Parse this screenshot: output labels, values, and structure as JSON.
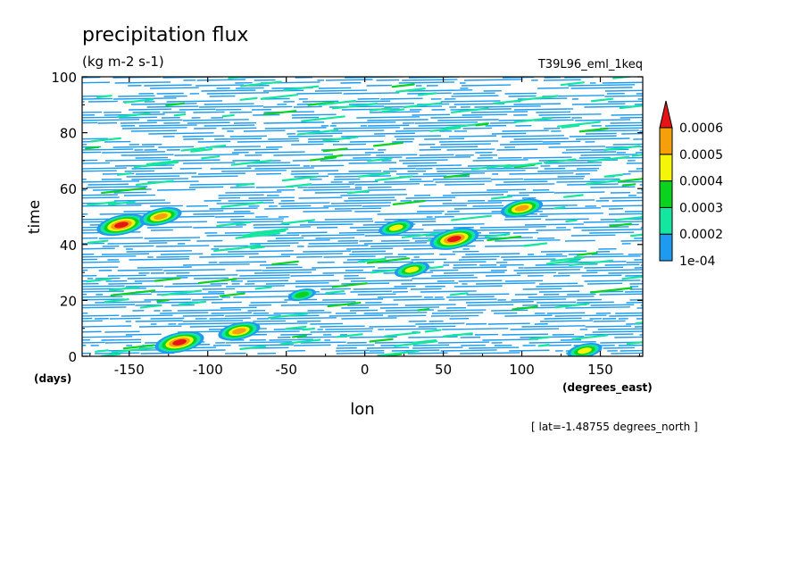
{
  "chart_data": {
    "type": "heatmap",
    "title": "precipitation flux",
    "units": "(kg m-2 s-1)",
    "experiment": "T39L96_eml_1keq",
    "xlabel": "lon",
    "xunits": "(degrees_east)",
    "ylabel": "time",
    "yunits": "(days)",
    "footnote": "[ lat=-1.48755 degrees_north ]",
    "xlim": [
      -180,
      177
    ],
    "ylim": [
      0,
      100
    ],
    "x_ticks": [
      -150,
      -100,
      -50,
      0,
      50,
      100,
      150
    ],
    "x_tick_labels": [
      "-150",
      "-100",
      "-50",
      "0",
      "50",
      "100",
      "150"
    ],
    "y_ticks": [
      0,
      20,
      40,
      60,
      80,
      100
    ],
    "y_tick_labels": [
      "0",
      "20",
      "40",
      "60",
      "80",
      "100"
    ],
    "colorbar": {
      "levels": [
        0.0001,
        0.0002,
        0.0003,
        0.0004,
        0.0005,
        0.0006
      ],
      "level_labels": [
        "1e-04",
        "0.0002",
        "0.0003",
        "0.0004",
        "0.0005",
        "0.0006"
      ],
      "colors": [
        "#1e9bf0",
        "#14e6a0",
        "#0ad21e",
        "#f5f50a",
        "#f5a00a",
        "#e61414"
      ],
      "extend": "max"
    },
    "features": [
      {
        "x": -155,
        "y": 47,
        "level": 6
      },
      {
        "x": -130,
        "y": 50,
        "level": 5
      },
      {
        "x": -118,
        "y": 5,
        "level": 6
      },
      {
        "x": -80,
        "y": 9,
        "level": 5
      },
      {
        "x": 57,
        "y": 42,
        "level": 6
      },
      {
        "x": 100,
        "y": 53,
        "level": 5
      },
      {
        "x": 30,
        "y": 31,
        "level": 4
      },
      {
        "x": 140,
        "y": 2,
        "level": 4
      },
      {
        "x": 20,
        "y": 46,
        "level": 4
      },
      {
        "x": -40,
        "y": 22,
        "level": 3
      }
    ]
  }
}
